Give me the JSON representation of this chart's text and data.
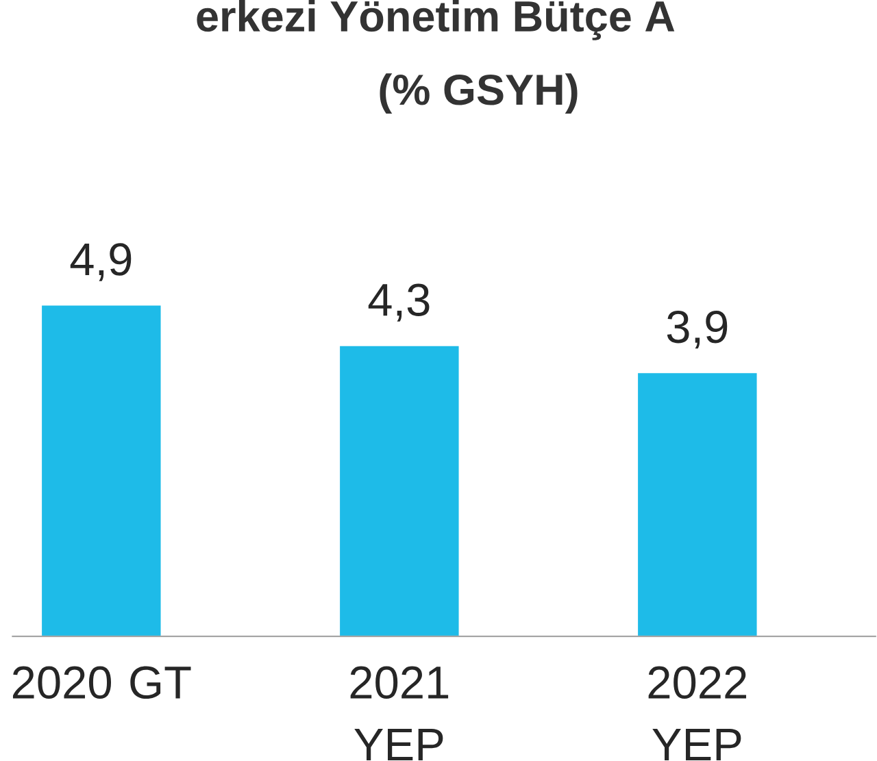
{
  "chart_data": {
    "type": "bar",
    "title": "erkezi Yönetim Bütçe A",
    "subtitle": "(% GSYH)",
    "categories": [
      "2020 GT",
      "2021 YEP",
      "2022 YEP"
    ],
    "values": [
      4.9,
      4.3,
      3.9
    ],
    "value_labels": [
      "4,9",
      "4,3",
      "3,9"
    ],
    "color": "#1ebbe8"
  }
}
